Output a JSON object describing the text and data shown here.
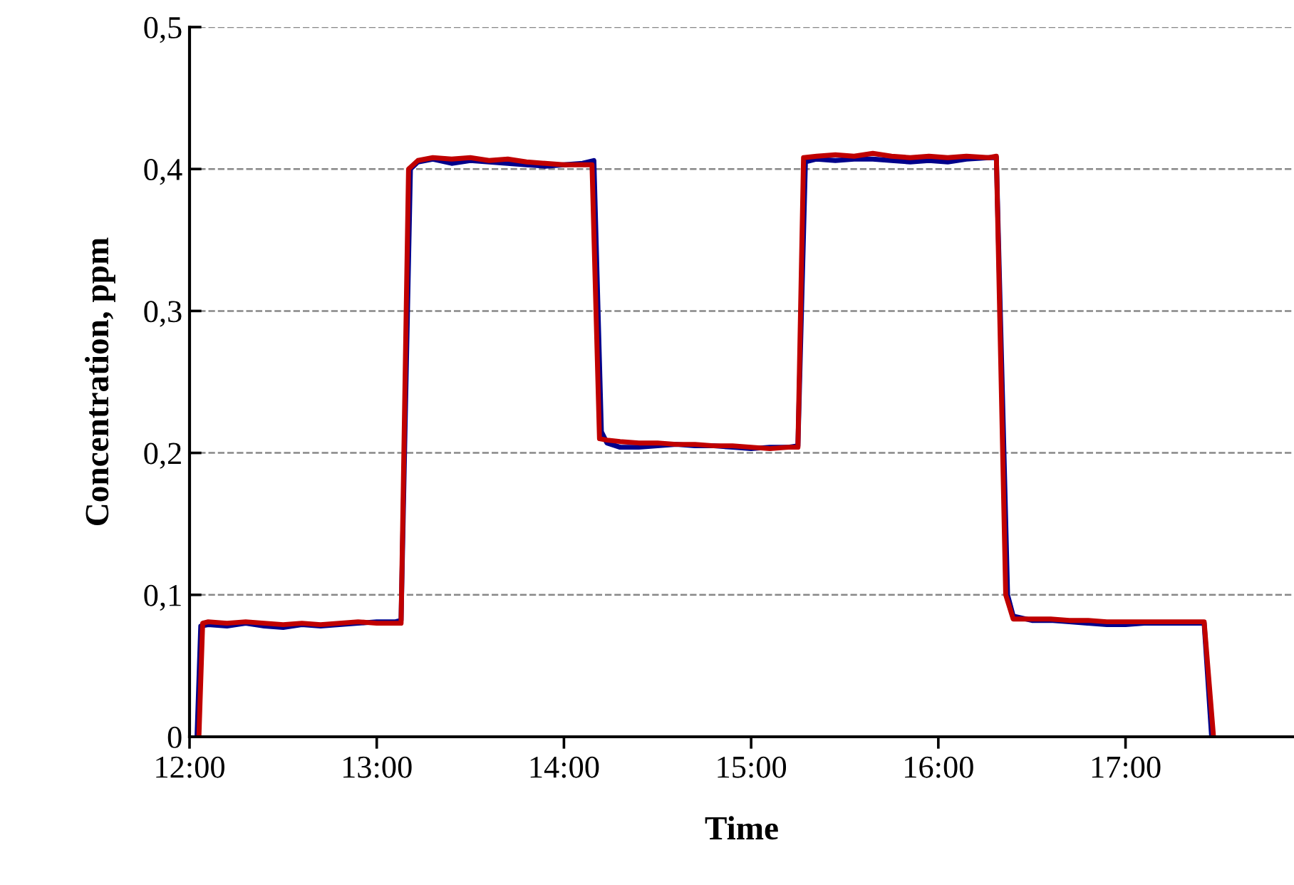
{
  "chart_data": {
    "type": "line",
    "xlabel": "Time",
    "ylabel": "Concentration, ppm",
    "xlim": [
      12,
      17.9
    ],
    "ylim": [
      0,
      0.5
    ],
    "xticks": [
      {
        "value": 12,
        "label": "12:00"
      },
      {
        "value": 13,
        "label": "13:00"
      },
      {
        "value": 14,
        "label": "14:00"
      },
      {
        "value": 15,
        "label": "15:00"
      },
      {
        "value": 16,
        "label": "16:00"
      },
      {
        "value": 17,
        "label": "17:00"
      }
    ],
    "yticks": [
      {
        "value": 0,
        "label": "0"
      },
      {
        "value": 0.1,
        "label": "0,1"
      },
      {
        "value": 0.2,
        "label": "0,2"
      },
      {
        "value": 0.3,
        "label": "0,3"
      },
      {
        "value": 0.4,
        "label": "0,4"
      },
      {
        "value": 0.5,
        "label": "0,5"
      }
    ],
    "grid": "y",
    "line_style": "solid",
    "marker": "none",
    "series": [
      {
        "color": "#00008b",
        "x": [
          12.04,
          12.06,
          12.1,
          12.2,
          12.3,
          12.4,
          12.5,
          12.6,
          12.7,
          12.8,
          12.9,
          13.0,
          13.1,
          13.13,
          13.18,
          13.22,
          13.3,
          13.4,
          13.5,
          13.6,
          13.7,
          13.8,
          13.9,
          14.0,
          14.1,
          14.16,
          14.2,
          14.23,
          14.3,
          14.4,
          14.5,
          14.6,
          14.7,
          14.8,
          14.9,
          15.0,
          15.1,
          15.2,
          15.25,
          15.29,
          15.35,
          15.45,
          15.55,
          15.65,
          15.75,
          15.85,
          15.95,
          16.05,
          16.15,
          16.27,
          16.31,
          16.37,
          16.4,
          16.5,
          16.6,
          16.7,
          16.8,
          16.9,
          17.0,
          17.1,
          17.2,
          17.3,
          17.42,
          17.46
        ],
        "values": [
          0,
          0.078,
          0.079,
          0.078,
          0.08,
          0.078,
          0.077,
          0.079,
          0.078,
          0.079,
          0.08,
          0.081,
          0.081,
          0.082,
          0.4,
          0.405,
          0.407,
          0.404,
          0.406,
          0.405,
          0.404,
          0.403,
          0.402,
          0.403,
          0.404,
          0.406,
          0.215,
          0.207,
          0.204,
          0.204,
          0.205,
          0.206,
          0.205,
          0.205,
          0.204,
          0.203,
          0.204,
          0.204,
          0.205,
          0.405,
          0.407,
          0.406,
          0.407,
          0.407,
          0.406,
          0.405,
          0.406,
          0.405,
          0.407,
          0.408,
          0.408,
          0.1,
          0.085,
          0.082,
          0.082,
          0.081,
          0.08,
          0.079,
          0.079,
          0.08,
          0.08,
          0.08,
          0.08,
          0
        ]
      },
      {
        "color": "#c00000",
        "x": [
          12.05,
          12.07,
          12.1,
          12.2,
          12.3,
          12.4,
          12.5,
          12.6,
          12.7,
          12.8,
          12.9,
          13.0,
          13.1,
          13.13,
          13.17,
          13.22,
          13.3,
          13.4,
          13.5,
          13.6,
          13.7,
          13.8,
          13.9,
          14.0,
          14.1,
          14.15,
          14.19,
          14.23,
          14.3,
          14.4,
          14.5,
          14.6,
          14.7,
          14.8,
          14.9,
          15.0,
          15.1,
          15.2,
          15.25,
          15.28,
          15.35,
          15.45,
          15.55,
          15.65,
          15.75,
          15.85,
          15.95,
          16.05,
          16.15,
          16.27,
          16.31,
          16.36,
          16.4,
          16.5,
          16.6,
          16.7,
          16.8,
          16.9,
          17.0,
          17.1,
          17.2,
          17.3,
          17.42,
          17.47
        ],
        "values": [
          0,
          0.08,
          0.081,
          0.08,
          0.081,
          0.08,
          0.079,
          0.08,
          0.079,
          0.08,
          0.081,
          0.08,
          0.08,
          0.08,
          0.4,
          0.406,
          0.408,
          0.407,
          0.408,
          0.406,
          0.407,
          0.405,
          0.404,
          0.403,
          0.403,
          0.403,
          0.21,
          0.209,
          0.208,
          0.207,
          0.207,
          0.206,
          0.206,
          0.205,
          0.205,
          0.204,
          0.203,
          0.204,
          0.204,
          0.408,
          0.409,
          0.41,
          0.409,
          0.411,
          0.409,
          0.408,
          0.409,
          0.408,
          0.409,
          0.408,
          0.409,
          0.1,
          0.083,
          0.083,
          0.083,
          0.082,
          0.082,
          0.081,
          0.081,
          0.081,
          0.081,
          0.081,
          0.081,
          0
        ]
      }
    ]
  }
}
